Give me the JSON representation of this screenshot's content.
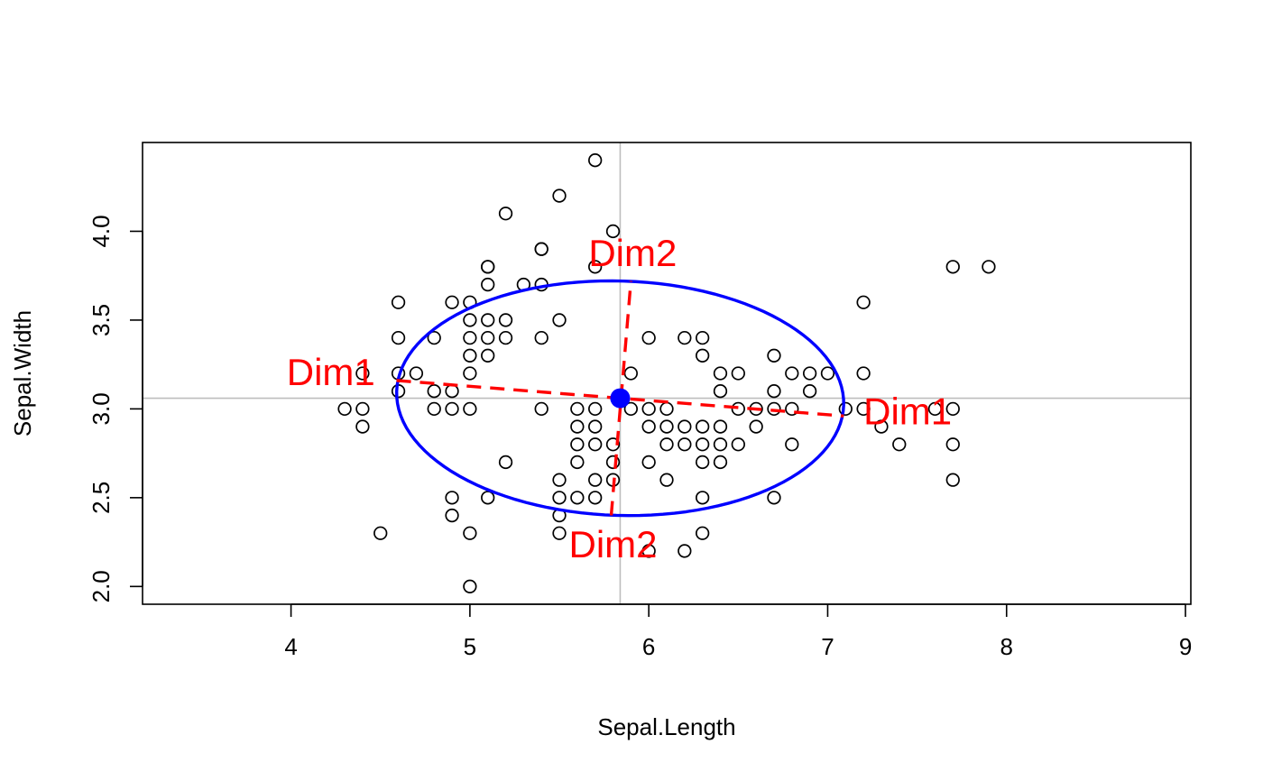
{
  "chart_data": {
    "type": "scatter",
    "title": "",
    "xlabel": "Sepal.Length",
    "ylabel": "Sepal.Width",
    "xlim": [
      3.17,
      9.03
    ],
    "ylim": [
      1.9,
      4.5
    ],
    "x_ticks": [
      4,
      5,
      6,
      7,
      8,
      9
    ],
    "y_ticks": [
      2.0,
      2.5,
      3.0,
      3.5,
      4.0
    ],
    "x_tick_labels": [
      "4",
      "5",
      "6",
      "7",
      "8",
      "9"
    ],
    "y_tick_labels": [
      "2.0",
      "2.5",
      "3.0",
      "3.5",
      "4.0"
    ],
    "grid": false,
    "reference_lines": {
      "x": 5.84,
      "y": 3.06,
      "color": "#bebebe"
    },
    "colors": {
      "points": "#000000",
      "ellipse": "#0000ff",
      "center": "#0000ff",
      "axes_lines": "#ff0000",
      "reference": "#bebebe"
    },
    "points": [
      [
        5.7,
        4.4
      ],
      [
        5.5,
        4.2
      ],
      [
        5.2,
        4.1
      ],
      [
        5.8,
        4.0
      ],
      [
        5.4,
        3.9
      ],
      [
        5.4,
        3.9
      ],
      [
        5.1,
        3.8
      ],
      [
        5.1,
        3.8
      ],
      [
        5.7,
        3.8
      ],
      [
        7.7,
        3.8
      ],
      [
        7.9,
        3.8
      ],
      [
        5.1,
        3.7
      ],
      [
        5.3,
        3.7
      ],
      [
        5.4,
        3.7
      ],
      [
        4.6,
        3.6
      ],
      [
        5.0,
        3.6
      ],
      [
        4.9,
        3.6
      ],
      [
        7.2,
        3.6
      ],
      [
        5.0,
        3.5
      ],
      [
        5.1,
        3.5
      ],
      [
        5.2,
        3.5
      ],
      [
        5.5,
        3.5
      ],
      [
        4.6,
        3.4
      ],
      [
        4.8,
        3.4
      ],
      [
        5.0,
        3.4
      ],
      [
        5.1,
        3.4
      ],
      [
        5.2,
        3.4
      ],
      [
        5.4,
        3.4
      ],
      [
        6.0,
        3.4
      ],
      [
        6.2,
        3.4
      ],
      [
        6.3,
        3.4
      ],
      [
        5.0,
        3.3
      ],
      [
        5.1,
        3.3
      ],
      [
        6.3,
        3.3
      ],
      [
        6.7,
        3.3
      ],
      [
        4.4,
        3.2
      ],
      [
        4.6,
        3.2
      ],
      [
        4.7,
        3.2
      ],
      [
        5.0,
        3.2
      ],
      [
        5.9,
        3.2
      ],
      [
        6.4,
        3.2
      ],
      [
        6.5,
        3.2
      ],
      [
        6.8,
        3.2
      ],
      [
        6.9,
        3.2
      ],
      [
        7.0,
        3.2
      ],
      [
        7.2,
        3.2
      ],
      [
        4.6,
        3.1
      ],
      [
        4.8,
        3.1
      ],
      [
        4.9,
        3.1
      ],
      [
        6.4,
        3.1
      ],
      [
        6.7,
        3.1
      ],
      [
        6.9,
        3.1
      ],
      [
        4.3,
        3.0
      ],
      [
        4.4,
        3.0
      ],
      [
        4.8,
        3.0
      ],
      [
        4.9,
        3.0
      ],
      [
        5.0,
        3.0
      ],
      [
        5.4,
        3.0
      ],
      [
        5.6,
        3.0
      ],
      [
        5.7,
        3.0
      ],
      [
        5.9,
        3.0
      ],
      [
        6.0,
        3.0
      ],
      [
        6.1,
        3.0
      ],
      [
        6.5,
        3.0
      ],
      [
        6.6,
        3.0
      ],
      [
        6.7,
        3.0
      ],
      [
        6.8,
        3.0
      ],
      [
        7.1,
        3.0
      ],
      [
        7.2,
        3.0
      ],
      [
        7.6,
        3.0
      ],
      [
        7.7,
        3.0
      ],
      [
        4.4,
        2.9
      ],
      [
        5.6,
        2.9
      ],
      [
        5.7,
        2.9
      ],
      [
        6.0,
        2.9
      ],
      [
        6.1,
        2.9
      ],
      [
        6.2,
        2.9
      ],
      [
        6.3,
        2.9
      ],
      [
        6.4,
        2.9
      ],
      [
        6.6,
        2.9
      ],
      [
        7.3,
        2.9
      ],
      [
        5.6,
        2.8
      ],
      [
        5.7,
        2.8
      ],
      [
        5.8,
        2.8
      ],
      [
        6.1,
        2.8
      ],
      [
        6.2,
        2.8
      ],
      [
        6.3,
        2.8
      ],
      [
        6.4,
        2.8
      ],
      [
        6.5,
        2.8
      ],
      [
        6.8,
        2.8
      ],
      [
        7.4,
        2.8
      ],
      [
        7.7,
        2.8
      ],
      [
        5.2,
        2.7
      ],
      [
        5.6,
        2.7
      ],
      [
        5.8,
        2.7
      ],
      [
        6.0,
        2.7
      ],
      [
        6.3,
        2.7
      ],
      [
        6.4,
        2.7
      ],
      [
        5.5,
        2.6
      ],
      [
        5.7,
        2.6
      ],
      [
        5.8,
        2.6
      ],
      [
        6.1,
        2.6
      ],
      [
        7.7,
        2.6
      ],
      [
        4.9,
        2.5
      ],
      [
        5.1,
        2.5
      ],
      [
        5.5,
        2.5
      ],
      [
        5.6,
        2.5
      ],
      [
        5.7,
        2.5
      ],
      [
        6.3,
        2.5
      ],
      [
        6.7,
        2.5
      ],
      [
        4.9,
        2.4
      ],
      [
        5.5,
        2.4
      ],
      [
        4.5,
        2.3
      ],
      [
        5.0,
        2.3
      ],
      [
        5.5,
        2.3
      ],
      [
        6.3,
        2.3
      ],
      [
        6.0,
        2.2
      ],
      [
        6.2,
        2.2
      ],
      [
        5.0,
        2.0
      ]
    ],
    "center": [
      5.84,
      3.06
    ],
    "ellipse": {
      "center": [
        5.84,
        3.06
      ],
      "semi_axis_dim1": 1.25,
      "semi_axis_dim2": 0.66,
      "angle_deg": -1.8
    },
    "dimension_axes": [
      {
        "name": "Dim1",
        "from": [
          4.59,
          3.16
        ],
        "to": [
          7.09,
          2.96
        ]
      },
      {
        "name": "Dim2",
        "from": [
          5.79,
          2.4
        ],
        "to": [
          5.9,
          3.72
        ]
      }
    ],
    "annotations": [
      {
        "text": "Dim1",
        "x": 4.47,
        "y": 3.19,
        "anchor": "end"
      },
      {
        "text": "Dim1",
        "x": 7.2,
        "y": 2.97,
        "anchor": "start"
      },
      {
        "text": "Dim2",
        "x": 5.91,
        "y": 3.86,
        "anchor": "middle"
      },
      {
        "text": "Dim2",
        "x": 5.8,
        "y": 2.22,
        "anchor": "middle"
      }
    ]
  }
}
